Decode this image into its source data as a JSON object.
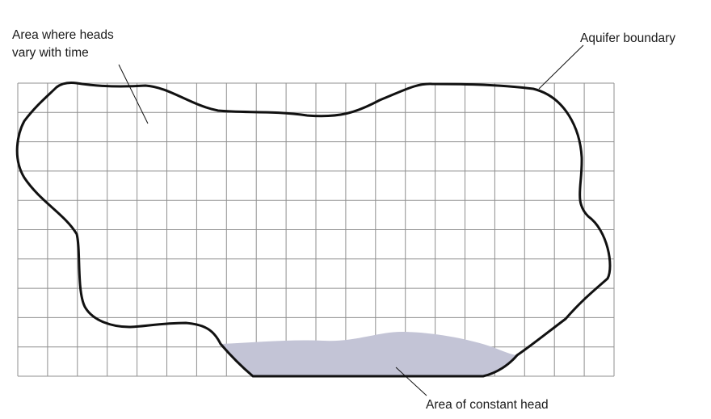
{
  "labels": {
    "variable_head_line1": "Area where heads",
    "variable_head_line2": "vary with time",
    "aquifer_boundary": "Aquifer boundary",
    "constant_head": "Area of constant head"
  },
  "grid": {
    "columns": 20,
    "rows": 10
  },
  "colors": {
    "grid_line": "#8f8f8f",
    "boundary": "#111111",
    "constant_head_fill": "#c3c4d6",
    "text": "#1a1a1a"
  }
}
